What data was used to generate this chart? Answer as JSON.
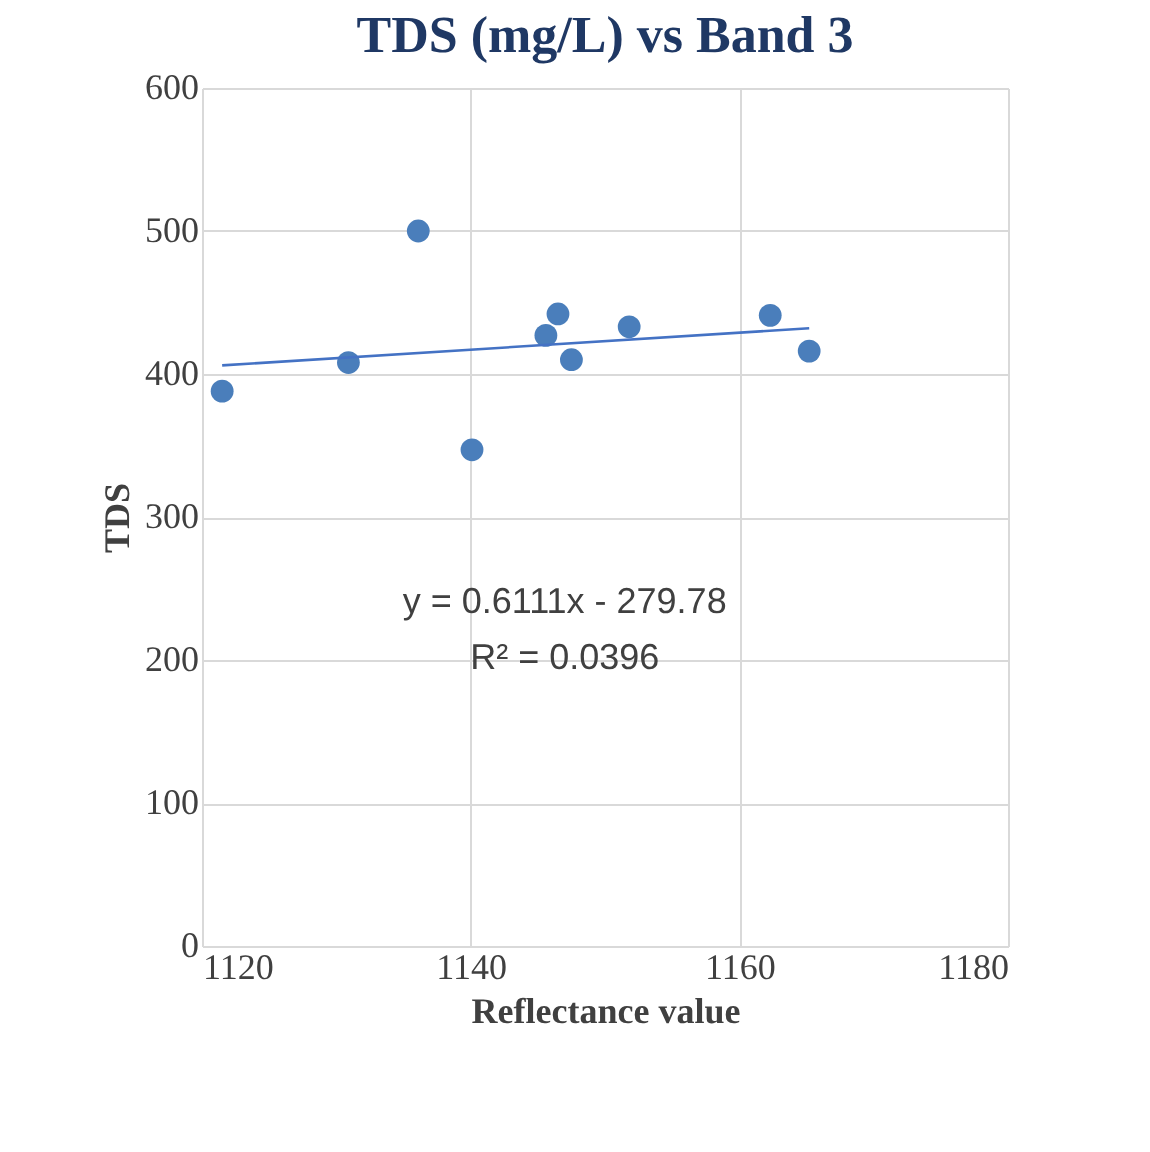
{
  "chart_data": {
    "type": "scatter",
    "title": "TDS (mg/L) vs Band 3",
    "xlabel": "Reflectance value",
    "ylabel": "TDS",
    "xlim": [
      1120,
      1180
    ],
    "xticks": [
      1120,
      1140,
      1160,
      1180
    ],
    "ylim": [
      0,
      600
    ],
    "yticks": [
      0,
      100,
      200,
      300,
      400,
      500,
      600
    ],
    "grid": true,
    "marker": "circle",
    "series": [
      {
        "color": "#4a7ebb",
        "x": [
          1121.5,
          1130.9,
          1136.1,
          1140.1,
          1145.6,
          1146.5,
          1147.5,
          1151.8,
          1162.3,
          1165.2
        ],
        "values": [
          388,
          408,
          500,
          347,
          427,
          442,
          410,
          433,
          441,
          416
        ]
      },
      {
        "type": "line",
        "color": "#4472c4",
        "x": [
          1121.5,
          1165.2
        ],
        "values": [
          406,
          432
        ],
        "marker": "none"
      }
    ],
    "annotations": [
      "y = 0.6111x - 279.78",
      "R² = 0.0396"
    ]
  }
}
